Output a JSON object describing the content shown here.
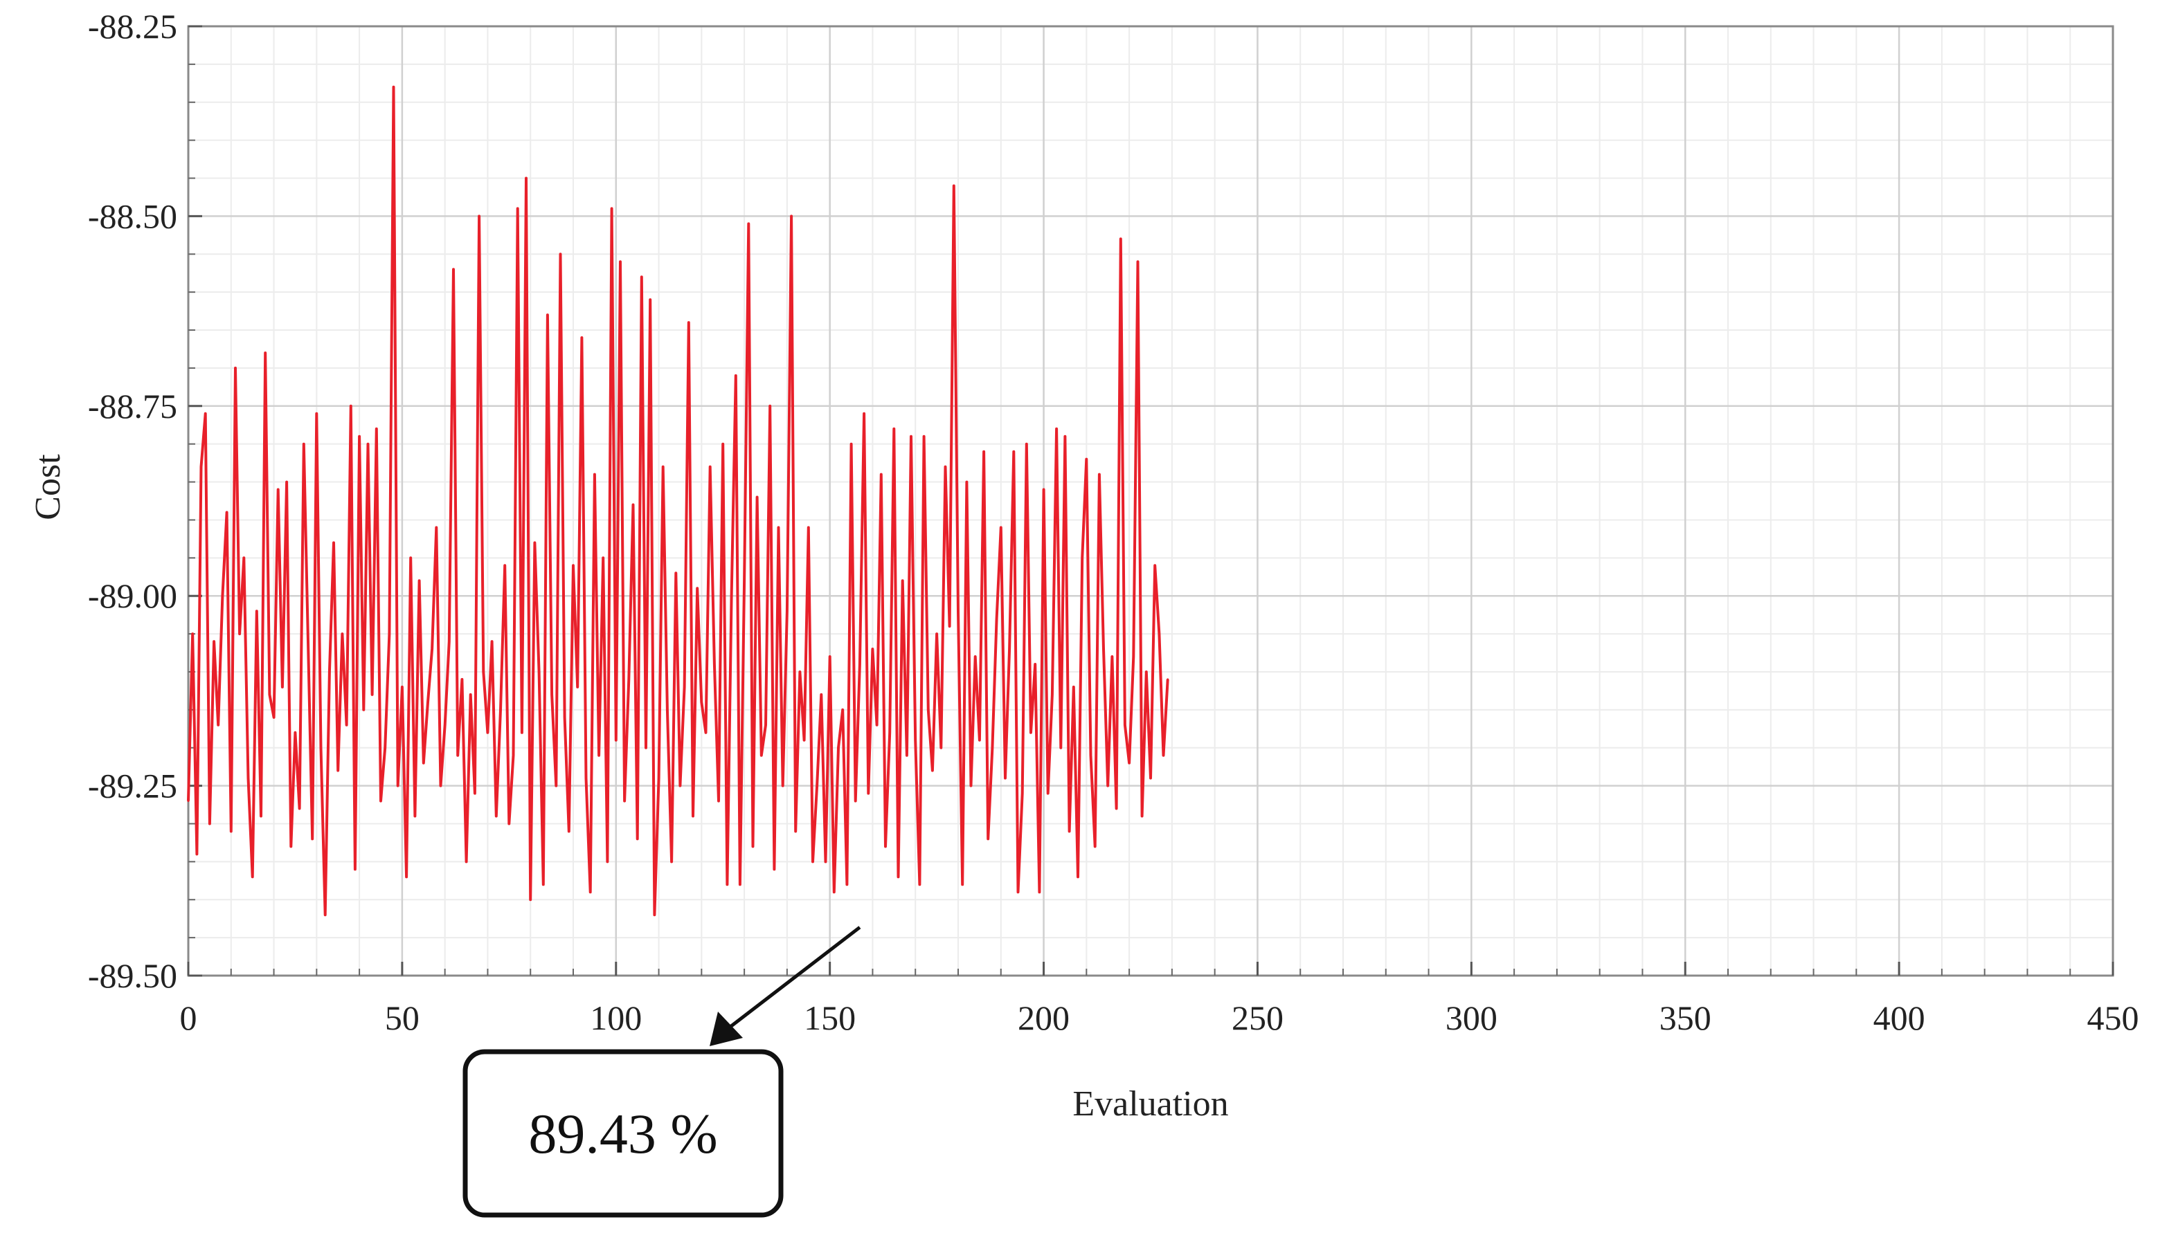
{
  "chart_data": {
    "type": "line",
    "xlabel": "Evaluation",
    "ylabel": "Cost",
    "xlim": [
      0,
      450
    ],
    "ylim": [
      -89.5,
      -88.25
    ],
    "xticks": [
      0,
      50,
      100,
      150,
      200,
      250,
      300,
      350,
      400,
      450
    ],
    "yticks": [
      -88.25,
      -88.5,
      -88.75,
      -89.0,
      -89.25,
      -89.5
    ],
    "x_tick_labels": [
      "0",
      "50",
      "100",
      "150",
      "200",
      "250",
      "300",
      "350",
      "400",
      "450"
    ],
    "y_tick_labels": [
      "-88.25",
      "-88.50",
      "-88.75",
      "-89.00",
      "-89.25",
      "-89.50"
    ],
    "grid": true,
    "line_color": "#e8202a",
    "series": [
      {
        "x_start": 0,
        "x_step": 1,
        "values": [
          -89.27,
          -89.05,
          -89.34,
          -88.83,
          -88.76,
          -89.3,
          -89.06,
          -89.17,
          -89.0,
          -88.89,
          -89.31,
          -88.7,
          -89.05,
          -88.95,
          -89.24,
          -89.37,
          -89.02,
          -89.29,
          -88.68,
          -89.13,
          -89.16,
          -88.86,
          -89.12,
          -88.85,
          -89.33,
          -89.18,
          -89.28,
          -88.8,
          -89.06,
          -89.32,
          -88.76,
          -89.2,
          -89.42,
          -89.1,
          -88.93,
          -89.23,
          -89.05,
          -89.17,
          -88.75,
          -89.36,
          -88.79,
          -89.15,
          -88.8,
          -89.13,
          -88.78,
          -89.27,
          -89.2,
          -89.05,
          -88.33,
          -89.25,
          -89.12,
          -89.37,
          -88.95,
          -89.29,
          -88.98,
          -89.22,
          -89.14,
          -89.07,
          -88.91,
          -89.25,
          -89.17,
          -89.06,
          -88.57,
          -89.21,
          -89.11,
          -89.35,
          -89.13,
          -89.26,
          -88.5,
          -89.1,
          -89.18,
          -89.06,
          -89.29,
          -89.15,
          -88.96,
          -89.3,
          -89.21,
          -88.49,
          -89.18,
          -88.45,
          -89.4,
          -88.93,
          -89.1,
          -89.38,
          -88.63,
          -89.13,
          -89.25,
          -88.55,
          -89.16,
          -89.31,
          -88.96,
          -89.12,
          -88.66,
          -89.24,
          -89.39,
          -88.84,
          -89.21,
          -88.95,
          -89.35,
          -88.49,
          -89.19,
          -88.56,
          -89.27,
          -89.11,
          -88.88,
          -89.32,
          -88.58,
          -89.2,
          -88.61,
          -89.42,
          -89.24,
          -88.83,
          -89.15,
          -89.35,
          -88.97,
          -89.25,
          -89.12,
          -88.64,
          -89.29,
          -88.99,
          -89.14,
          -89.18,
          -88.83,
          -89.09,
          -89.27,
          -88.8,
          -89.38,
          -89.0,
          -88.71,
          -89.38,
          -88.98,
          -88.51,
          -89.33,
          -88.87,
          -89.21,
          -89.17,
          -88.75,
          -89.36,
          -88.91,
          -89.25,
          -89.02,
          -88.5,
          -89.31,
          -89.1,
          -89.19,
          -88.91,
          -89.35,
          -89.25,
          -89.13,
          -89.35,
          -89.08,
          -89.39,
          -89.2,
          -89.15,
          -89.38,
          -88.8,
          -89.27,
          -89.09,
          -88.76,
          -89.26,
          -89.07,
          -89.17,
          -88.84,
          -89.33,
          -89.18,
          -88.78,
          -89.37,
          -88.98,
          -89.21,
          -88.79,
          -89.19,
          -89.38,
          -88.79,
          -89.15,
          -89.23,
          -89.05,
          -89.2,
          -88.83,
          -89.04,
          -88.46,
          -89.02,
          -89.38,
          -88.85,
          -89.25,
          -89.08,
          -89.19,
          -88.81,
          -89.32,
          -89.2,
          -89.03,
          -88.91,
          -89.24,
          -89.07,
          -88.81,
          -89.39,
          -89.26,
          -88.8,
          -89.18,
          -89.09,
          -89.39,
          -88.86,
          -89.26,
          -89.13,
          -88.78,
          -89.2,
          -88.79,
          -89.31,
          -89.12,
          -89.37,
          -88.95,
          -88.82,
          -89.21,
          -89.33,
          -88.84,
          -89.07,
          -89.25,
          -89.08,
          -89.28,
          -88.53,
          -89.17,
          -89.22,
          -89.08,
          -88.56,
          -89.29,
          -89.1,
          -89.24,
          -88.96,
          -89.05,
          -89.21,
          -89.11
        ]
      }
    ]
  },
  "annotation": {
    "label": "89.43 %",
    "target_x": 157,
    "target_y": -89.42
  }
}
